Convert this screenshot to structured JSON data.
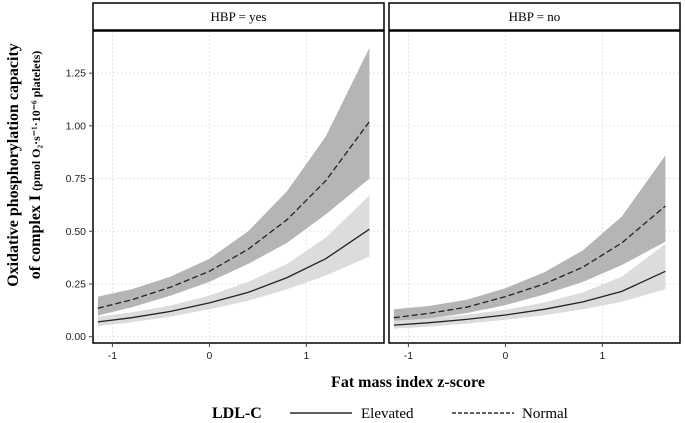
{
  "chart_data": {
    "type": "line",
    "x_var": "Fat mass index z-score",
    "xlabel": "Fat mass index z-score",
    "ylabel_line1": "Oxidative phosphorylation capacity",
    "ylabel_line2": "of complex I",
    "ylabel_units": "(pmol O₂·s⁻¹·10⁻⁶ platelets)",
    "xlim": [
      -1.2,
      1.8
    ],
    "ylim": [
      -0.03,
      1.45
    ],
    "x_ticks": [
      -1,
      0,
      1
    ],
    "x_tick_labels": [
      "-1",
      "0",
      "1"
    ],
    "y_ticks": [
      0.0,
      0.25,
      0.5,
      0.75,
      1.0,
      1.25
    ],
    "y_tick_labels": [
      "0.00",
      "0.25",
      "0.50",
      "0.75",
      "1.00",
      "1.25"
    ],
    "grid": true,
    "legend": {
      "position": "bottom",
      "title": "LDL-C",
      "entries": [
        {
          "name": "Elevated",
          "style": "solid"
        },
        {
          "name": "Normal",
          "style": "dashed"
        }
      ]
    },
    "panels": [
      {
        "strip": "HBP = yes",
        "series": [
          {
            "name": "Normal",
            "style": "dashed",
            "band_color": "#b5b5b5",
            "x": [
              -1.15,
              -0.8,
              -0.4,
              0.0,
              0.4,
              0.8,
              1.2,
              1.65
            ],
            "y": [
              0.135,
              0.175,
              0.235,
              0.31,
              0.415,
              0.555,
              0.74,
              1.02
            ],
            "lower": [
              0.1,
              0.14,
              0.195,
              0.26,
              0.345,
              0.445,
              0.58,
              0.75
            ],
            "upper": [
              0.19,
              0.225,
              0.285,
              0.37,
              0.5,
              0.69,
              0.95,
              1.37
            ]
          },
          {
            "name": "Elevated",
            "style": "solid",
            "band_color": "#dcdcdc",
            "x": [
              -1.15,
              -0.8,
              -0.4,
              0.0,
              0.4,
              0.8,
              1.2,
              1.65
            ],
            "y": [
              0.07,
              0.09,
              0.12,
              0.16,
              0.21,
              0.28,
              0.37,
              0.51
            ],
            "lower": [
              0.05,
              0.068,
              0.095,
              0.13,
              0.17,
              0.225,
              0.29,
              0.38
            ],
            "upper": [
              0.095,
              0.115,
              0.148,
              0.195,
              0.26,
              0.345,
              0.47,
              0.67
            ]
          }
        ]
      },
      {
        "strip": "HBP = no",
        "series": [
          {
            "name": "Normal",
            "style": "dashed",
            "band_color": "#b5b5b5",
            "x": [
              -1.15,
              -0.8,
              -0.4,
              0.0,
              0.4,
              0.8,
              1.2,
              1.65
            ],
            "y": [
              0.09,
              0.11,
              0.14,
              0.19,
              0.25,
              0.33,
              0.445,
              0.62
            ],
            "lower": [
              0.065,
              0.085,
              0.112,
              0.15,
              0.2,
              0.26,
              0.34,
              0.45
            ],
            "upper": [
              0.13,
              0.145,
              0.175,
              0.23,
              0.305,
              0.41,
              0.57,
              0.86
            ]
          },
          {
            "name": "Elevated",
            "style": "solid",
            "band_color": "#dcdcdc",
            "x": [
              -1.15,
              -0.8,
              -0.4,
              0.0,
              0.4,
              0.8,
              1.2,
              1.65
            ],
            "y": [
              0.055,
              0.066,
              0.082,
              0.103,
              0.13,
              0.165,
              0.215,
              0.31
            ],
            "lower": [
              0.038,
              0.048,
              0.062,
              0.08,
              0.102,
              0.13,
              0.165,
              0.225
            ],
            "upper": [
              0.075,
              0.086,
              0.104,
              0.128,
              0.162,
              0.21,
              0.285,
              0.44
            ]
          }
        ]
      }
    ]
  }
}
